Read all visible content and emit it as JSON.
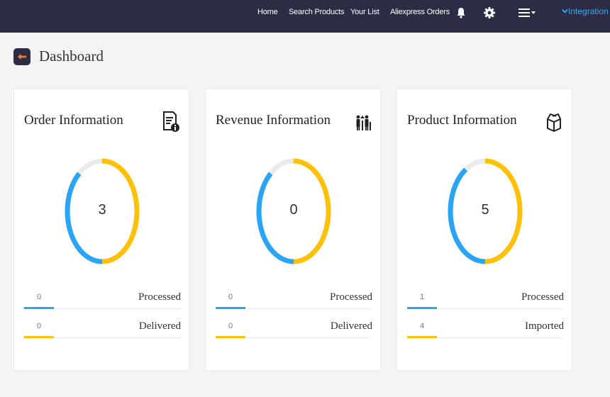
{
  "nav": {
    "links": [
      "Home",
      "Search Products",
      "Your List",
      "Aliexpress Orders"
    ],
    "bell_icon": "bell-icon",
    "settings_icon": "gear-icon",
    "menu_icon": "hamburger-menu-icon",
    "integration_label": "Integration"
  },
  "page": {
    "title": "Dashboard",
    "back_icon": "arrow-left-icon"
  },
  "colors": {
    "nav_bg": "#2d2c45",
    "blue": "#2aa4f4",
    "yellow": "#ffc107",
    "track": "#ebebeb",
    "accent_orange": "#f0832b"
  },
  "cards": [
    {
      "title": "Order Information",
      "icon": "invoice-info-icon",
      "total": "3",
      "ring": {
        "blue": 0.4,
        "yellow": 0.5
      },
      "stats": [
        {
          "value": "0",
          "label": "Processed",
          "color": "#2aa4f4"
        },
        {
          "value": "0",
          "label": "Delivered",
          "color": "#ffc107"
        }
      ]
    },
    {
      "title": "Revenue Information",
      "icon": "revenue-people-icon",
      "total": "0",
      "ring": {
        "blue": 0.4,
        "yellow": 0.5
      },
      "stats": [
        {
          "value": "0",
          "label": "Processed",
          "color": "#2aa4f4"
        },
        {
          "value": "0",
          "label": "Delivered",
          "color": "#ffc107"
        }
      ]
    },
    {
      "title": "Product Information",
      "icon": "open-box-icon",
      "total": "5",
      "ring": {
        "blue": 0.42,
        "yellow": 0.5
      },
      "stats": [
        {
          "value": "1",
          "label": "Processed",
          "color": "#2aa4f4"
        },
        {
          "value": "4",
          "label": "Imported",
          "color": "#ffc107"
        }
      ]
    }
  ]
}
